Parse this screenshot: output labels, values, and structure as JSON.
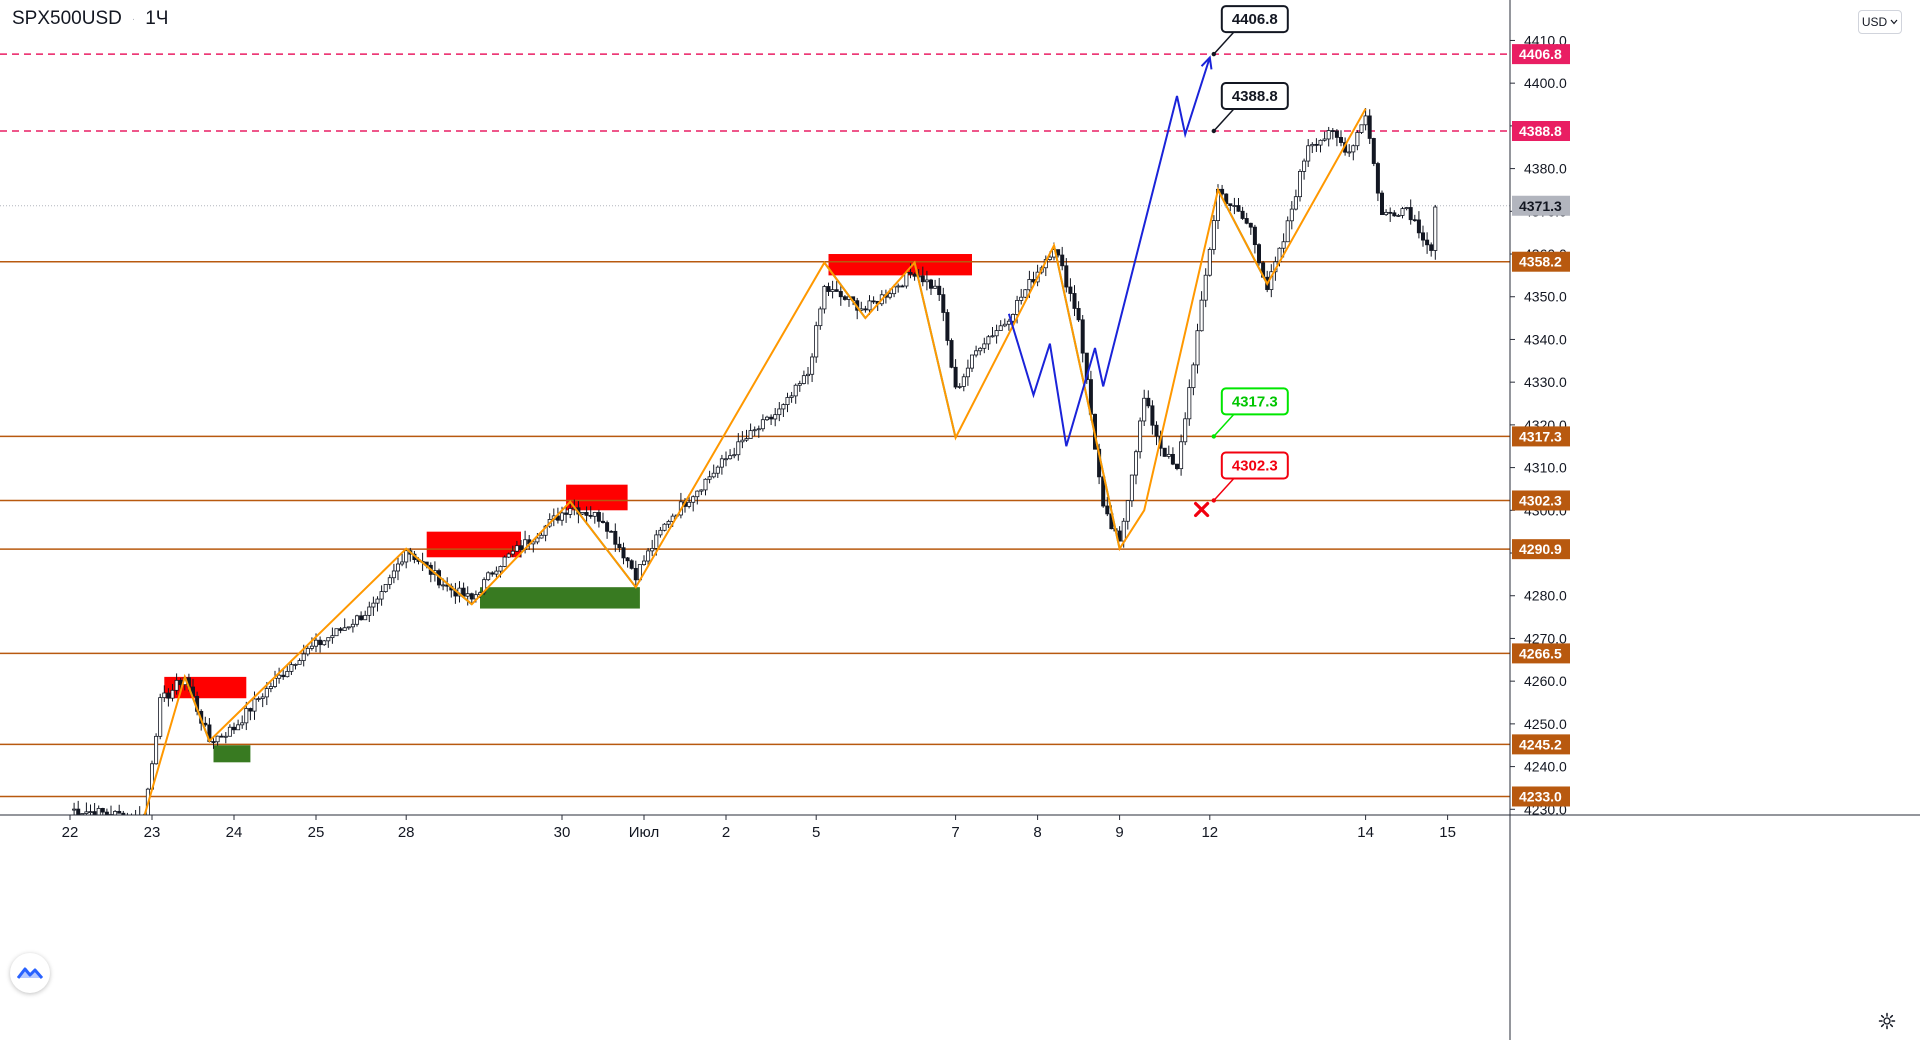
{
  "header": {
    "symbol": "SPX500USD",
    "interval": "1Ч",
    "separator": "·"
  },
  "currency_button": {
    "label": "USD",
    "icon": "chevron-down-icon"
  },
  "settings_button": {
    "icon": "gear-icon"
  },
  "logo": {
    "icon": "tradingview-logo-icon"
  },
  "price_scale": {
    "ticks": [
      "4230.0",
      "4240.0",
      "4250.0",
      "4260.0",
      "4270.0",
      "4280.0",
      "4290.0",
      "4300.0",
      "4310.0",
      "4320.0",
      "4330.0",
      "4340.0",
      "4350.0",
      "4360.0",
      "4370.0",
      "4380.0",
      "4390.0",
      "4400.0",
      "4410.0"
    ],
    "current_price": "4371.3"
  },
  "time_scale": {
    "ticks": [
      {
        "label": "22",
        "i": 0
      },
      {
        "label": "23",
        "i": 20
      },
      {
        "label": "24",
        "i": 40
      },
      {
        "label": "25",
        "i": 60
      },
      {
        "label": "28",
        "i": 82
      },
      {
        "label": "30",
        "i": 120
      },
      {
        "label": "Июл",
        "i": 140
      },
      {
        "label": "2",
        "i": 160
      },
      {
        "label": "5",
        "i": 182
      },
      {
        "label": "7",
        "i": 216
      },
      {
        "label": "8",
        "i": 236
      },
      {
        "label": "9",
        "i": 256
      },
      {
        "label": "12",
        "i": 278
      },
      {
        "label": "14",
        "i": 316
      },
      {
        "label": "15",
        "i": 336
      }
    ]
  },
  "levels": [
    {
      "label": "4406.8",
      "value": 4406.8,
      "style": "dashed",
      "color": "#e91e63"
    },
    {
      "label": "4388.8",
      "value": 4388.8,
      "style": "dashed",
      "color": "#e91e63"
    },
    {
      "label": "4358.2",
      "value": 4358.2,
      "style": "solid",
      "color": "#b8590f"
    },
    {
      "label": "4317.3",
      "value": 4317.3,
      "style": "solid",
      "color": "#b8590f"
    },
    {
      "label": "4302.3",
      "value": 4302.3,
      "style": "solid",
      "color": "#b8590f"
    },
    {
      "label": "4290.9",
      "value": 4290.9,
      "style": "solid",
      "color": "#b8590f"
    },
    {
      "label": "4266.5",
      "value": 4266.5,
      "style": "solid",
      "color": "#b8590f"
    },
    {
      "label": "4245.2",
      "value": 4245.2,
      "style": "solid",
      "color": "#b8590f"
    },
    {
      "label": "4233.0",
      "value": 4233.0,
      "style": "solid",
      "color": "#b8590f"
    }
  ],
  "callouts": [
    {
      "label": "4406.8",
      "value": 4406.8,
      "i": 278,
      "box": "black"
    },
    {
      "label": "4388.8",
      "value": 4388.8,
      "i": 278,
      "box": "black"
    },
    {
      "label": "4317.3",
      "value": 4317.3,
      "i": 278,
      "box": "green"
    },
    {
      "label": "4302.3",
      "value": 4302.3,
      "i": 278,
      "box": "red"
    }
  ],
  "chart_data": {
    "type": "candlestick",
    "symbol": "SPX500USD",
    "interval": "1H",
    "ylim": [
      4230.0,
      4410.0
    ],
    "key_prices": [
      {
        "i": 0,
        "p": 4230
      },
      {
        "i": 18,
        "p": 4228
      },
      {
        "i": 22,
        "p": 4255
      },
      {
        "i": 28,
        "p": 4261
      },
      {
        "i": 34,
        "p": 4246
      },
      {
        "i": 40,
        "p": 4249
      },
      {
        "i": 46,
        "p": 4256
      },
      {
        "i": 56,
        "p": 4266
      },
      {
        "i": 66,
        "p": 4272
      },
      {
        "i": 75,
        "p": 4278
      },
      {
        "i": 82,
        "p": 4291
      },
      {
        "i": 92,
        "p": 4282
      },
      {
        "i": 98,
        "p": 4279
      },
      {
        "i": 104,
        "p": 4287
      },
      {
        "i": 112,
        "p": 4293
      },
      {
        "i": 122,
        "p": 4301
      },
      {
        "i": 130,
        "p": 4298
      },
      {
        "i": 138,
        "p": 4285
      },
      {
        "i": 146,
        "p": 4298
      },
      {
        "i": 154,
        "p": 4306
      },
      {
        "i": 164,
        "p": 4316
      },
      {
        "i": 174,
        "p": 4324
      },
      {
        "i": 180,
        "p": 4332
      },
      {
        "i": 184,
        "p": 4352
      },
      {
        "i": 194,
        "p": 4347
      },
      {
        "i": 206,
        "p": 4356
      },
      {
        "i": 212,
        "p": 4351
      },
      {
        "i": 216,
        "p": 4328
      },
      {
        "i": 222,
        "p": 4339
      },
      {
        "i": 228,
        "p": 4344
      },
      {
        "i": 236,
        "p": 4356
      },
      {
        "i": 240,
        "p": 4362
      },
      {
        "i": 246,
        "p": 4345
      },
      {
        "i": 252,
        "p": 4300
      },
      {
        "i": 256,
        "p": 4292
      },
      {
        "i": 262,
        "p": 4326
      },
      {
        "i": 266,
        "p": 4315
      },
      {
        "i": 270,
        "p": 4309
      },
      {
        "i": 276,
        "p": 4348
      },
      {
        "i": 280,
        "p": 4375
      },
      {
        "i": 288,
        "p": 4366
      },
      {
        "i": 292,
        "p": 4352
      },
      {
        "i": 296,
        "p": 4363
      },
      {
        "i": 302,
        "p": 4386
      },
      {
        "i": 308,
        "p": 4388
      },
      {
        "i": 312,
        "p": 4384
      },
      {
        "i": 316,
        "p": 4393
      },
      {
        "i": 320,
        "p": 4369
      },
      {
        "i": 326,
        "p": 4371
      },
      {
        "i": 332,
        "p": 4361
      },
      {
        "i": 333,
        "p": 4371
      }
    ],
    "zones": [
      {
        "kind": "supply",
        "i1": 23,
        "i2": 43,
        "p_top": 4261,
        "p_bottom": 4256
      },
      {
        "kind": "demand",
        "i1": 35,
        "i2": 44,
        "p_top": 4245,
        "p_bottom": 4241
      },
      {
        "kind": "supply",
        "i1": 87,
        "i2": 110,
        "p_top": 4295,
        "p_bottom": 4289
      },
      {
        "kind": "demand",
        "i1": 100,
        "i2": 139,
        "p_top": 4282,
        "p_bottom": 4277
      },
      {
        "kind": "supply",
        "i1": 121,
        "i2": 136,
        "p_top": 4306,
        "p_bottom": 4300
      },
      {
        "kind": "supply",
        "i1": 185,
        "i2": 220,
        "p_top": 4360,
        "p_bottom": 4355
      }
    ],
    "zigzag_orange": [
      [
        [
          18,
          4228
        ],
        [
          28,
          4261
        ],
        [
          34,
          4246
        ],
        [
          82,
          4291
        ],
        [
          98,
          4278
        ],
        [
          122,
          4302
        ],
        [
          138,
          4282
        ],
        [
          184,
          4358
        ],
        [
          194,
          4345
        ],
        [
          206,
          4358
        ],
        [
          216,
          4317
        ],
        [
          240,
          4362
        ],
        [
          256,
          4291
        ],
        [
          262,
          4300
        ],
        [
          280,
          4375
        ],
        [
          292,
          4353
        ],
        [
          316,
          4394
        ]
      ]
    ],
    "zigzag_teal": [
      [
        [
          28,
          4261
        ],
        [
          34,
          4246
        ]
      ],
      [
        [
          82,
          4291
        ],
        [
          98,
          4278
        ]
      ],
      [
        [
          122,
          4302
        ],
        [
          138,
          4282
        ]
      ],
      [
        [
          184,
          4358
        ],
        [
          194,
          4345
        ]
      ],
      [
        [
          206,
          4358
        ],
        [
          216,
          4317
        ]
      ],
      [
        [
          240,
          4362
        ],
        [
          256,
          4291
        ]
      ],
      [
        [
          280,
          4375
        ],
        [
          292,
          4353
        ]
      ]
    ],
    "projection_blue": [
      [
        [
          229,
          4346
        ],
        [
          235,
          4327
        ],
        [
          239,
          4339
        ],
        [
          243,
          4315
        ],
        [
          250,
          4338
        ],
        [
          252,
          4329
        ],
        [
          270,
          4397
        ],
        [
          272,
          4388
        ],
        [
          278,
          4406
        ]
      ]
    ],
    "stop_marker": {
      "i": 276,
      "p": 4300.2,
      "icon": "x-mark-icon"
    }
  }
}
